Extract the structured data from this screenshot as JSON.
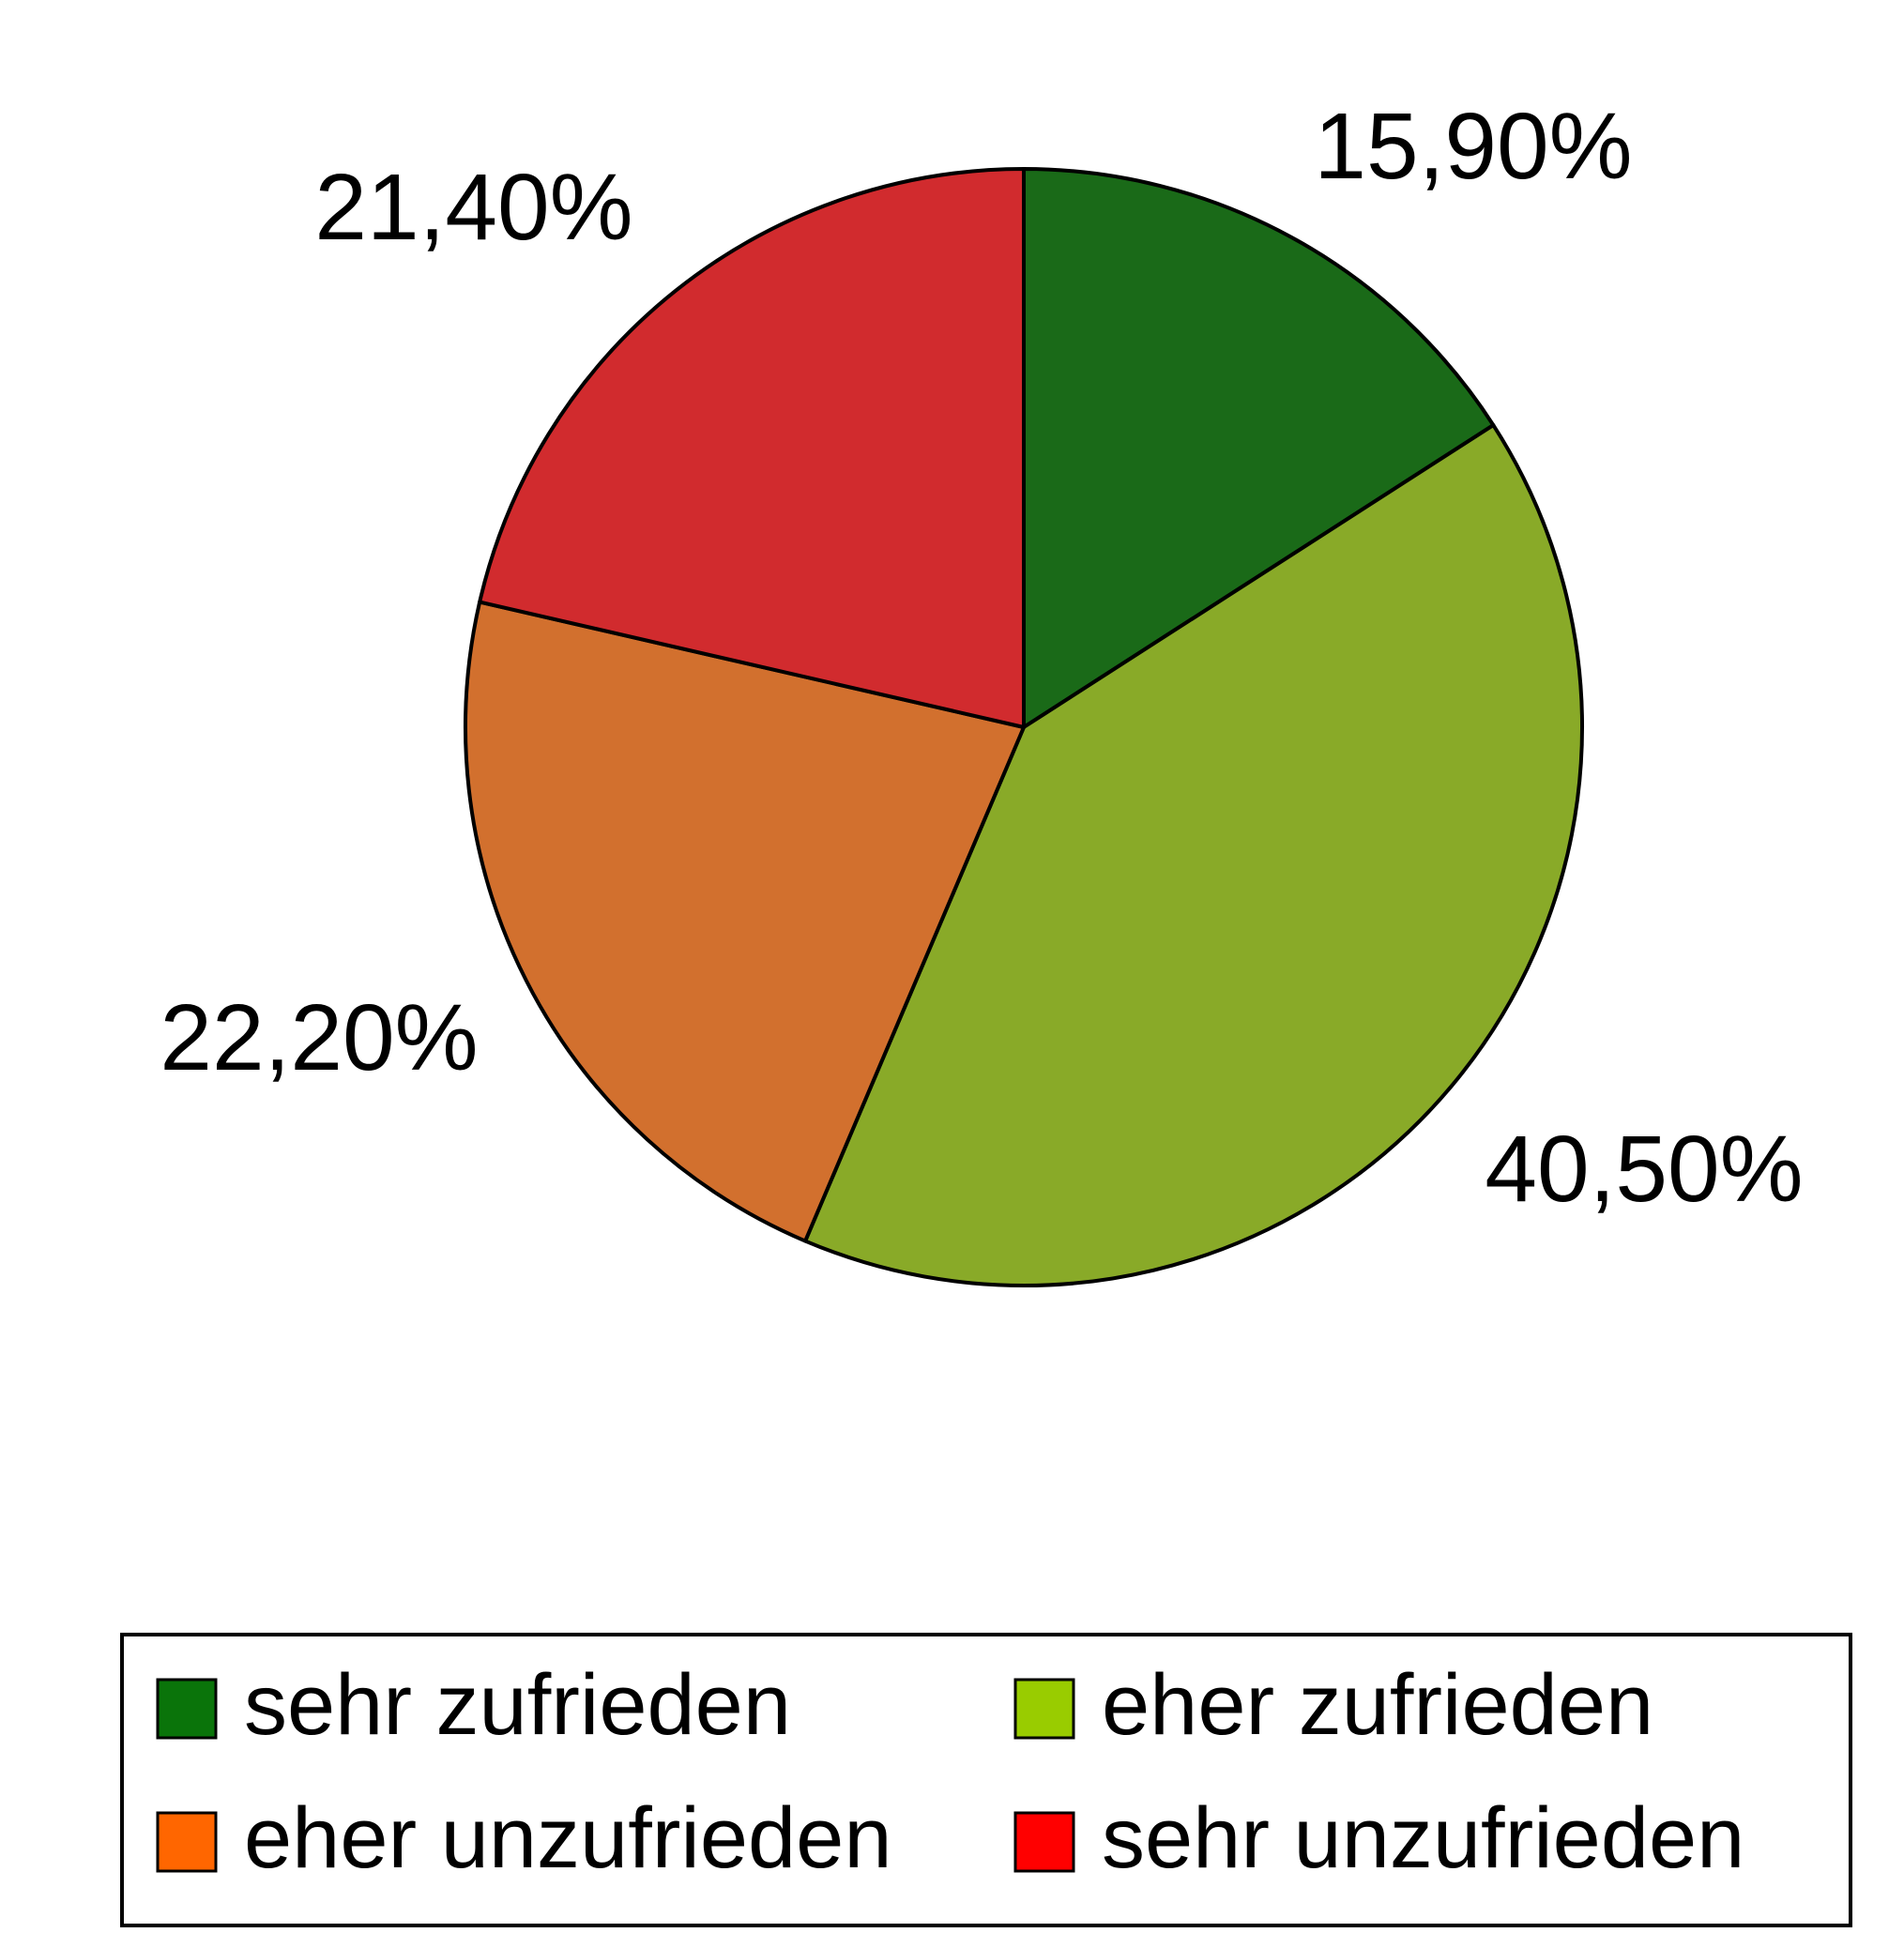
{
  "chart_data": {
    "type": "pie",
    "title": "",
    "start_angle_deg": 0,
    "direction": "clockwise",
    "slices": [
      {
        "label": "sehr zufrieden",
        "value": 15.9,
        "display": "15,90%",
        "color": "#1a6a18",
        "legend_color": "#0a740a"
      },
      {
        "label": "eher zufrieden",
        "value": 40.5,
        "display": "40,50%",
        "color": "#89aa28",
        "legend_color": "#99cc00"
      },
      {
        "label": "eher unzufrieden",
        "value": 22.2,
        "display": "22,20%",
        "color": "#d2702e",
        "legend_color": "#ff6600"
      },
      {
        "label": "sehr unzufrieden",
        "value": 21.4,
        "display": "21,40%",
        "color": "#d12b2e",
        "legend_color": "#ff0000"
      }
    ],
    "legend": {
      "position": "bottom",
      "columns": 2
    }
  }
}
